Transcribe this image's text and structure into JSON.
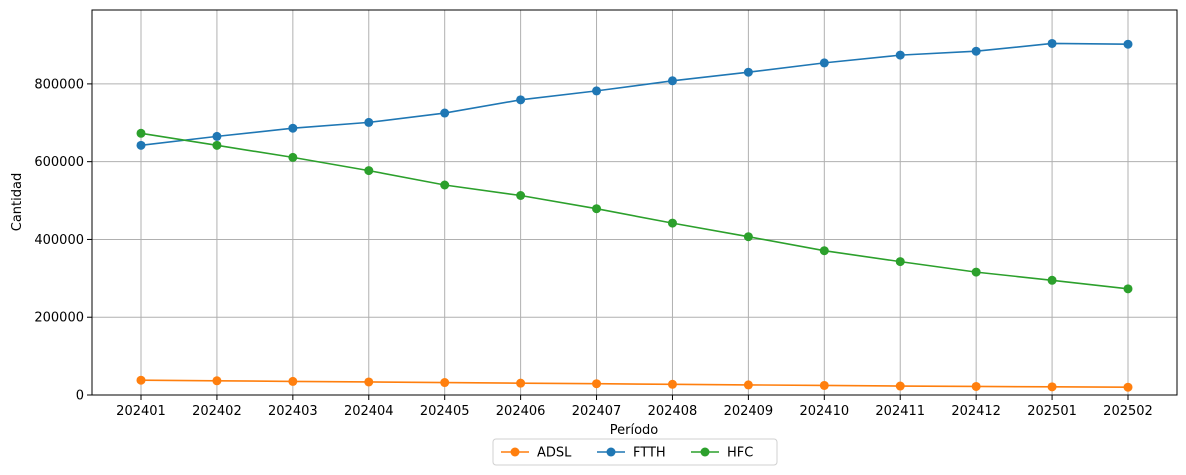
{
  "chart_data": {
    "type": "line",
    "title": "",
    "xlabel": "Período",
    "ylabel": "Cantidad",
    "categories": [
      "202401",
      "202402",
      "202403",
      "202404",
      "202405",
      "202406",
      "202407",
      "202408",
      "202409",
      "202410",
      "202411",
      "202412",
      "202501",
      "202502"
    ],
    "ylim": [
      0,
      990000
    ],
    "yticks": [
      0,
      200000,
      400000,
      600000,
      800000
    ],
    "ytick_labels": [
      "0",
      "200000",
      "400000",
      "600000",
      "800000"
    ],
    "grid": true,
    "legend_position": "bottom-center",
    "series": [
      {
        "name": "ADSL",
        "color": "#ff7f0e",
        "values": [
          38000,
          36500,
          35000,
          33500,
          32000,
          30500,
          29000,
          27500,
          26000,
          24500,
          23000,
          22000,
          21000,
          20000
        ]
      },
      {
        "name": "FTTH",
        "color": "#1f77b4",
        "values": [
          642000,
          665000,
          686000,
          701000,
          725000,
          759000,
          782000,
          808000,
          830000,
          854000,
          874000,
          884000,
          904000,
          902000
        ]
      },
      {
        "name": "HFC",
        "color": "#2ca02c",
        "values": [
          673000,
          642000,
          611000,
          577000,
          540000,
          513000,
          479000,
          442000,
          407000,
          371000,
          343000,
          316000,
          295000,
          273000
        ]
      }
    ]
  }
}
